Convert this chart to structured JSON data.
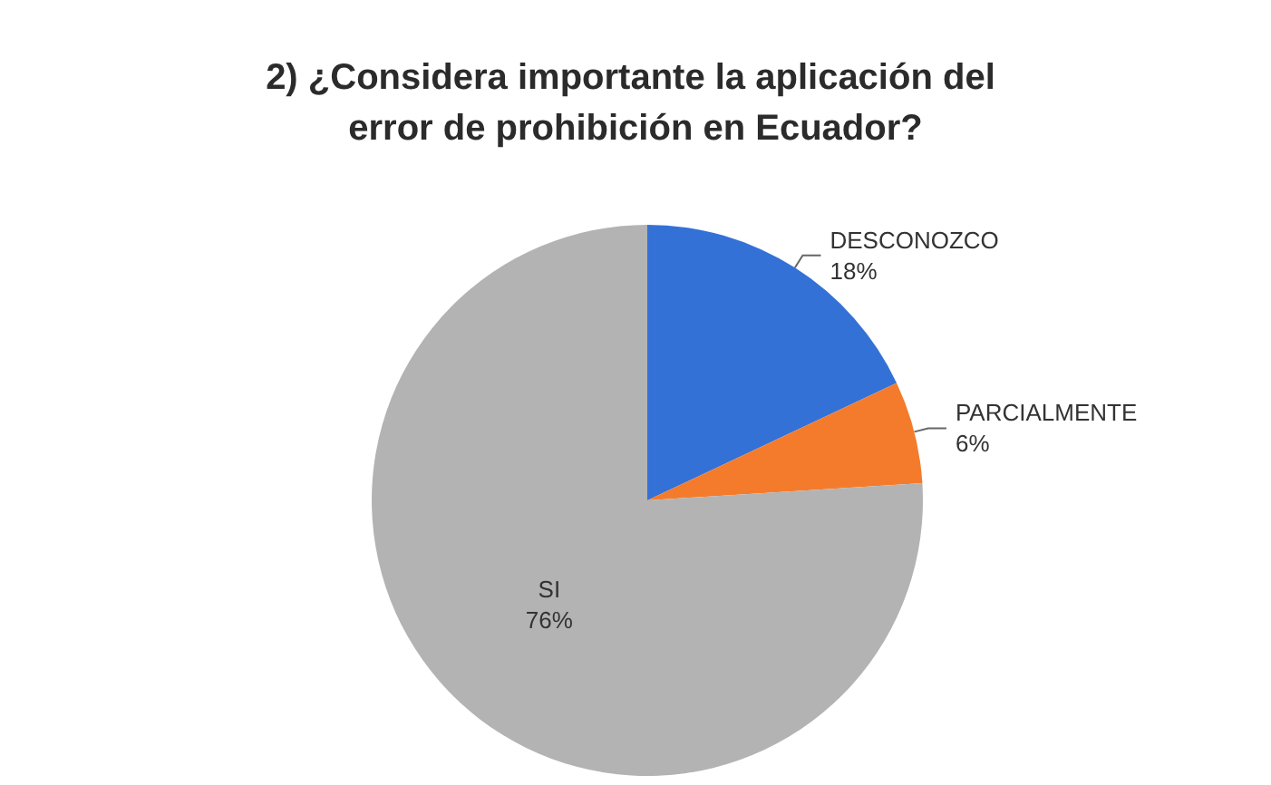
{
  "chart_data": {
    "type": "pie",
    "title": "2) ¿Considera importante la aplicación del error de prohibición en Ecuador?",
    "categories": [
      "DESCONOZCO",
      "PARCIALMENTE",
      "SI"
    ],
    "values": [
      18,
      6,
      76
    ],
    "colors": [
      "#3471d6",
      "#f47b2c",
      "#b3b3b3"
    ],
    "value_labels": [
      "18%",
      "6%",
      "76%"
    ]
  }
}
